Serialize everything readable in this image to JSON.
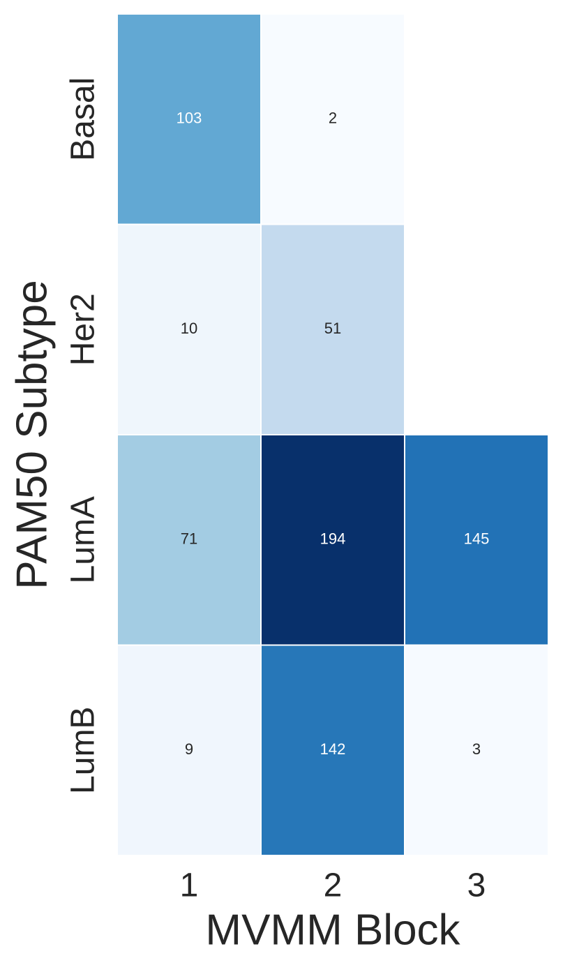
{
  "chart_data": {
    "type": "heatmap",
    "x_label": "MVMM Block",
    "y_label": "PAM50 Subtype",
    "x_categories": [
      "1",
      "2",
      "3"
    ],
    "y_categories": [
      "Basal",
      "Her2",
      "LumA",
      "LumB"
    ],
    "values": [
      [
        103,
        2,
        null
      ],
      [
        10,
        51,
        null
      ],
      [
        71,
        194,
        145
      ],
      [
        9,
        142,
        3
      ]
    ],
    "colormap": [
      "#f7fbff",
      "#deebf7",
      "#c6dbef",
      "#9ecae1",
      "#6baed6",
      "#4292c6",
      "#2171b5",
      "#08519c",
      "#08306b"
    ]
  }
}
